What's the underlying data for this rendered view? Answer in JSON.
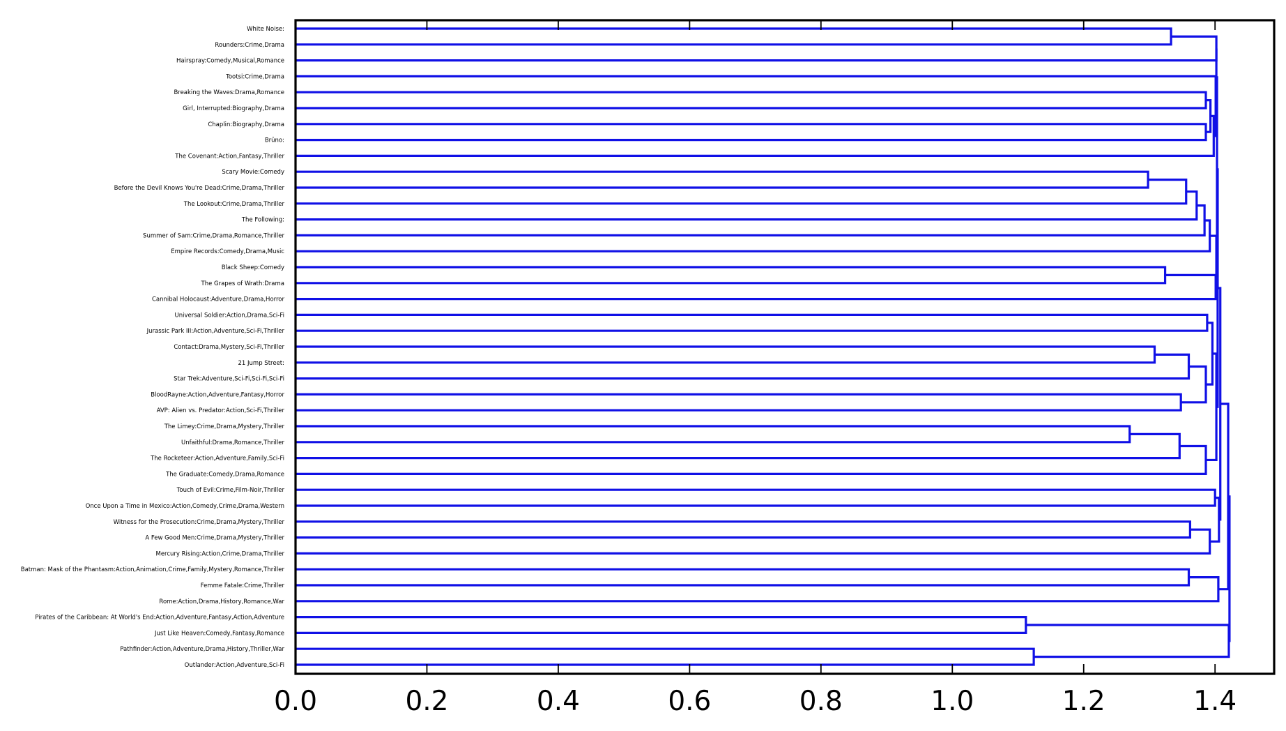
{
  "chart_data": {
    "type": "dendrogram",
    "orientation": "right",
    "xlim": [
      0,
      1.49
    ],
    "x_ticks": [
      "0.0",
      "0.2",
      "0.4",
      "0.6",
      "0.8",
      "1.0",
      "1.2",
      "1.4"
    ],
    "x_tick_values": [
      0.0,
      0.2,
      0.4,
      0.6,
      0.8,
      1.0,
      1.2,
      1.4
    ],
    "grid": false,
    "link_color": "#1010e6",
    "leaves": [
      "White Noise:",
      "Rounders:Crime,Drama",
      "Hairspray:Comedy,Musical,Romance",
      "Tootsi:Crime,Drama",
      "Breaking the Waves:Drama,Romance",
      "Girl, Interrupted:Biography,Drama",
      "Chaplin:Biography,Drama",
      "Brüno:",
      "The Covenant:Action,Fantasy,Thriller",
      "Scary Movie:Comedy",
      "Before the Devil Knows You're Dead:Crime,Drama,Thriller",
      "The Lookout:Crime,Drama,Thriller",
      "The Following:",
      "Summer of Sam:Crime,Drama,Romance,Thriller",
      "Empire Records:Comedy,Drama,Music",
      "Black Sheep:Comedy",
      "The Grapes of Wrath:Drama",
      "Cannibal Holocaust:Adventure,Drama,Horror",
      "Universal Soldier:Action,Drama,Sci-Fi",
      "Jurassic Park III:Action,Adventure,Sci-Fi,Thriller",
      "Contact:Drama,Mystery,Sci-Fi,Thriller",
      "21 Jump Street:",
      "Star Trek:Adventure,Sci-Fi,Sci-Fi,Sci-Fi",
      "BloodRayne:Action,Adventure,Fantasy,Horror",
      "AVP: Alien vs. Predator:Action,Sci-Fi,Thriller",
      "The Limey:Crime,Drama,Mystery,Thriller",
      "Unfaithful:Drama,Romance,Thriller",
      "The Rocketeer:Action,Adventure,Family,Sci-Fi",
      "The Graduate:Comedy,Drama,Romance",
      "Touch of Evil:Crime,Film-Noir,Thriller",
      "Once Upon a Time in Mexico:Action,Comedy,Crime,Drama,Western",
      "Witness for the Prosecution:Crime,Drama,Mystery,Thriller",
      "A Few Good Men:Crime,Drama,Mystery,Thriller",
      "Mercury Rising:Action,Crime,Drama,Thriller",
      "Batman: Mask of the Phantasm:Action,Animation,Crime,Family,Mystery,Romance,Thriller",
      "Femme Fatale:Crime,Thriller",
      "Rome:Action,Drama,History,Romance,War",
      "Pirates of the Caribbean: At World's End:Action,Adventure,Fantasy,Action,Adventure",
      "Just Like Heaven:Comedy,Fantasy,Romance",
      "Pathfinder:Action,Adventure,Drama,History,Thriller,War",
      "Outlander:Action,Adventure,Sci-Fi"
    ],
    "merges": [
      {
        "id": "A",
        "children": [
          0,
          1
        ],
        "height": 1.333
      },
      {
        "id": "B",
        "children": [
          "A",
          2
        ],
        "height": 1.402
      },
      {
        "id": "C",
        "children": [
          4,
          5
        ],
        "height": 1.386
      },
      {
        "id": "D",
        "children": [
          6,
          7
        ],
        "height": 1.386
      },
      {
        "id": "E",
        "children": [
          "C",
          "D"
        ],
        "height": 1.393
      },
      {
        "id": "F",
        "children": [
          "E",
          8
        ],
        "height": 1.398
      },
      {
        "id": "G",
        "children": [
          9,
          10
        ],
        "height": 1.298
      },
      {
        "id": "H",
        "children": [
          "G",
          11
        ],
        "height": 1.356
      },
      {
        "id": "I",
        "children": [
          "H",
          12
        ],
        "height": 1.372
      },
      {
        "id": "J",
        "children": [
          "I",
          13
        ],
        "height": 1.384
      },
      {
        "id": "K",
        "children": [
          "J",
          14
        ],
        "height": 1.392
      },
      {
        "id": "L",
        "children": [
          15,
          16
        ],
        "height": 1.324
      },
      {
        "id": "M",
        "children": [
          "L",
          17
        ],
        "height": 1.401
      },
      {
        "id": "N",
        "children": [
          18,
          19
        ],
        "height": 1.388
      },
      {
        "id": "O",
        "children": [
          20,
          21
        ],
        "height": 1.308
      },
      {
        "id": "P",
        "children": [
          "O",
          22
        ],
        "height": 1.36
      },
      {
        "id": "Q",
        "children": [
          23,
          24
        ],
        "height": 1.348
      },
      {
        "id": "R",
        "children": [
          "P",
          "Q"
        ],
        "height": 1.386
      },
      {
        "id": "S",
        "children": [
          "N",
          "R"
        ],
        "height": 1.396
      },
      {
        "id": "T",
        "children": [
          25,
          26
        ],
        "height": 1.27
      },
      {
        "id": "U",
        "children": [
          "T",
          27
        ],
        "height": 1.346
      },
      {
        "id": "V",
        "children": [
          "U",
          28
        ],
        "height": 1.386
      },
      {
        "id": "W",
        "children": [
          29,
          30
        ],
        "height": 1.4
      },
      {
        "id": "X",
        "children": [
          31,
          32
        ],
        "height": 1.362
      },
      {
        "id": "Y",
        "children": [
          "X",
          33
        ],
        "height": 1.392
      },
      {
        "id": "Z",
        "children": [
          34,
          35
        ],
        "height": 1.36
      },
      {
        "id": "AA",
        "children": [
          "Z",
          36
        ],
        "height": 1.405
      },
      {
        "id": "AB",
        "children": [
          3,
          "F"
        ],
        "height": 1.401
      },
      {
        "id": "AC",
        "children": [
          "B",
          "AB"
        ],
        "height": 1.402
      },
      {
        "id": "AD",
        "children": [
          "K",
          "M"
        ],
        "height": 1.402
      },
      {
        "id": "AE",
        "children": [
          "AC",
          "AD"
        ],
        "height": 1.403
      },
      {
        "id": "AF",
        "children": [
          "S",
          "V"
        ],
        "height": 1.402
      },
      {
        "id": "AG",
        "children": [
          "AE",
          "AF"
        ],
        "height": 1.404
      },
      {
        "id": "AH",
        "children": [
          "W",
          "Y"
        ],
        "height": 1.406
      },
      {
        "id": "AI",
        "children": [
          "AG",
          "AH"
        ],
        "height": 1.408
      },
      {
        "id": "AJ",
        "children": [
          "AI",
          "AA"
        ],
        "height": 1.42
      },
      {
        "id": "AK",
        "children": [
          37,
          38
        ],
        "height": 1.112
      },
      {
        "id": "AL",
        "children": [
          39,
          40
        ],
        "height": 1.124
      },
      {
        "id": "AM",
        "children": [
          "AK",
          "AL"
        ],
        "height": 1.421
      },
      {
        "id": "ROOT",
        "children": [
          "AJ",
          "AM"
        ],
        "height": 1.422
      }
    ]
  }
}
